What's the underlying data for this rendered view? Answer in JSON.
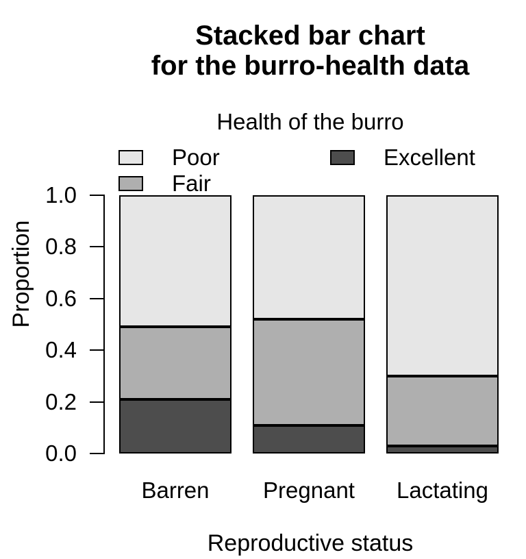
{
  "title": {
    "line1": "Stacked bar chart",
    "line2": "for the burro-health data"
  },
  "legend": {
    "title": "Health of the burro",
    "items": [
      {
        "label": "Poor",
        "color": "#E6E6E6"
      },
      {
        "label": "Fair",
        "color": "#AFAFAF"
      },
      {
        "label": "Excellent",
        "color": "#4D4D4D"
      }
    ]
  },
  "axes": {
    "ylabel": "Proportion",
    "xlabel": "Reproductive status"
  },
  "chart_data": {
    "type": "bar",
    "stacked": true,
    "title": "Stacked bar chart for the burro-health data",
    "legend_title": "Health of the burro",
    "legend_position": "top",
    "xlabel": "Reproductive status",
    "ylabel": "Proportion",
    "categories": [
      "Barren",
      "Pregnant",
      "Lactating"
    ],
    "series": [
      {
        "name": "Excellent",
        "color": "#4D4D4D",
        "values": [
          0.21,
          0.11,
          0.03
        ]
      },
      {
        "name": "Fair",
        "color": "#AFAFAF",
        "values": [
          0.28,
          0.41,
          0.27
        ]
      },
      {
        "name": "Poor",
        "color": "#E6E6E6",
        "values": [
          0.51,
          0.48,
          0.7
        ]
      }
    ],
    "ylim": [
      0.0,
      1.0
    ],
    "yticks": [
      "0.0",
      "0.2",
      "0.4",
      "0.6",
      "0.8",
      "1.0"
    ],
    "grid": false,
    "bar_border_color": "#000000",
    "background": "#FFFFFF"
  }
}
